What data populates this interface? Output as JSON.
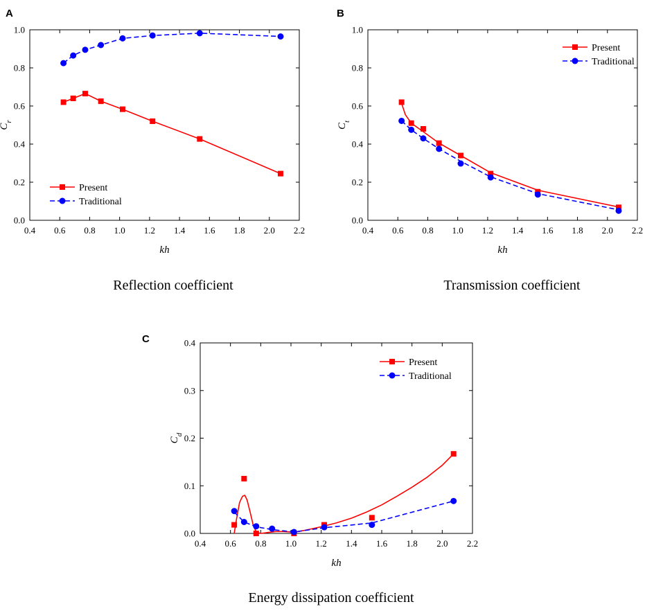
{
  "chart_data": [
    {
      "type": "line",
      "panel_label": "A",
      "caption": "Reflection coefficient",
      "xlabel": "kh",
      "ylabel": "C",
      "ylabel_sub": "r",
      "xlim": [
        0.4,
        2.2
      ],
      "ylim": [
        0.0,
        1.0
      ],
      "xticks": [
        "0.4",
        "0.6",
        "0.8",
        "1.0",
        "1.2",
        "1.4",
        "1.6",
        "1.8",
        "2.0",
        "2.2"
      ],
      "yticks": [
        "0.0",
        "0.2",
        "0.4",
        "0.6",
        "0.8",
        "1.0"
      ],
      "legend_position": "bottom-left",
      "series": [
        {
          "name": "Present",
          "color": "#ff0000",
          "marker": "square",
          "dash": "solid",
          "x": [
            0.625,
            0.69,
            0.77,
            0.875,
            1.02,
            1.22,
            1.535,
            2.075
          ],
          "values": [
            0.62,
            0.64,
            0.665,
            0.625,
            0.583,
            0.52,
            0.427,
            0.245
          ],
          "curve_x": [
            0.625,
            0.69,
            0.77,
            0.875,
            1.02,
            1.22,
            1.535,
            2.075
          ],
          "curve_y": [
            0.62,
            0.64,
            0.665,
            0.625,
            0.583,
            0.52,
            0.427,
            0.245
          ]
        },
        {
          "name": "Traditional",
          "color": "#0000ff",
          "marker": "circle",
          "dash": "dashed",
          "x": [
            0.625,
            0.69,
            0.77,
            0.875,
            1.02,
            1.22,
            1.535,
            2.075
          ],
          "values": [
            0.825,
            0.865,
            0.895,
            0.92,
            0.955,
            0.97,
            0.982,
            0.965
          ],
          "curve_x": [
            0.625,
            0.69,
            0.77,
            0.875,
            1.02,
            1.22,
            1.535,
            2.075
          ],
          "curve_y": [
            0.825,
            0.865,
            0.895,
            0.92,
            0.955,
            0.97,
            0.982,
            0.965
          ]
        }
      ]
    },
    {
      "type": "line",
      "panel_label": "B",
      "caption": "Transmission coefficient",
      "xlabel": "kh",
      "ylabel": "C",
      "ylabel_sub": "t",
      "xlim": [
        0.4,
        2.2
      ],
      "ylim": [
        0.0,
        1.0
      ],
      "xticks": [
        "0.4",
        "0.6",
        "0.8",
        "1.0",
        "1.2",
        "1.4",
        "1.6",
        "1.8",
        "2.0",
        "2.2"
      ],
      "yticks": [
        "0.0",
        "0.2",
        "0.4",
        "0.6",
        "0.8",
        "1.0"
      ],
      "legend_position": "top-right",
      "series": [
        {
          "name": "Present",
          "color": "#ff0000",
          "marker": "square",
          "dash": "solid",
          "x": [
            0.625,
            0.69,
            0.77,
            0.875,
            1.02,
            1.22,
            1.535,
            2.075
          ],
          "values": [
            0.62,
            0.51,
            0.48,
            0.405,
            0.34,
            0.245,
            0.15,
            0.068
          ],
          "curve_x": [
            0.625,
            0.65,
            0.69,
            0.77,
            0.875,
            1.02,
            1.22,
            1.535,
            2.075
          ],
          "curve_y": [
            0.615,
            0.555,
            0.51,
            0.465,
            0.405,
            0.34,
            0.25,
            0.158,
            0.07
          ]
        },
        {
          "name": "Traditional",
          "color": "#0000ff",
          "marker": "circle",
          "dash": "dashed",
          "x": [
            0.625,
            0.69,
            0.77,
            0.875,
            1.02,
            1.22,
            1.535,
            2.075
          ],
          "values": [
            0.522,
            0.475,
            0.43,
            0.375,
            0.298,
            0.225,
            0.135,
            0.05
          ],
          "curve_x": [
            0.625,
            0.69,
            0.77,
            0.875,
            1.02,
            1.22,
            1.535,
            2.075
          ],
          "curve_y": [
            0.522,
            0.475,
            0.43,
            0.375,
            0.31,
            0.228,
            0.14,
            0.055
          ]
        }
      ]
    },
    {
      "type": "line",
      "panel_label": "C",
      "caption": "Energy dissipation coefficient",
      "xlabel": "kh",
      "ylabel": "C",
      "ylabel_sub": "d",
      "xlim": [
        0.4,
        2.2
      ],
      "ylim": [
        0.0,
        0.4
      ],
      "xticks": [
        "0.4",
        "0.6",
        "0.8",
        "1.0",
        "1.2",
        "1.4",
        "1.6",
        "1.8",
        "2.0",
        "2.2"
      ],
      "yticks": [
        "0.0",
        "0.1",
        "0.2",
        "0.3",
        "0.4"
      ],
      "legend_position": "top-right",
      "series": [
        {
          "name": "Present",
          "color": "#ff0000",
          "marker": "square",
          "dash": "solid",
          "x": [
            0.625,
            0.69,
            0.77,
            1.02,
            1.22,
            1.535,
            2.075
          ],
          "values": [
            0.018,
            0.115,
            0.0,
            0.0,
            0.018,
            0.033,
            0.167
          ],
          "curve_x": [
            0.625,
            0.64,
            0.66,
            0.68,
            0.695,
            0.71,
            0.73,
            0.75,
            0.77,
            0.8,
            0.85,
            0.9,
            0.95,
            1.0,
            1.05,
            1.1,
            1.2,
            1.3,
            1.4,
            1.5,
            1.6,
            1.7,
            1.8,
            1.9,
            2.0,
            2.075
          ],
          "curve_y": [
            0.0,
            0.03,
            0.065,
            0.078,
            0.08,
            0.07,
            0.045,
            0.018,
            0.003,
            0.0,
            0.002,
            0.004,
            0.004,
            0.003,
            0.004,
            0.007,
            0.014,
            0.022,
            0.032,
            0.045,
            0.06,
            0.078,
            0.097,
            0.118,
            0.143,
            0.167
          ]
        },
        {
          "name": "Traditional",
          "color": "#0000ff",
          "marker": "circle",
          "dash": "dashed",
          "x": [
            0.625,
            0.69,
            0.77,
            0.875,
            1.02,
            1.22,
            1.535,
            2.075
          ],
          "values": [
            0.047,
            0.024,
            0.015,
            0.01,
            0.003,
            0.013,
            0.018,
            0.068
          ],
          "curve_x": [
            0.625,
            0.69,
            0.77,
            0.875,
            1.02,
            1.22,
            1.535,
            2.075
          ],
          "curve_y": [
            0.045,
            0.024,
            0.014,
            0.008,
            0.003,
            0.012,
            0.022,
            0.068
          ]
        }
      ]
    }
  ]
}
